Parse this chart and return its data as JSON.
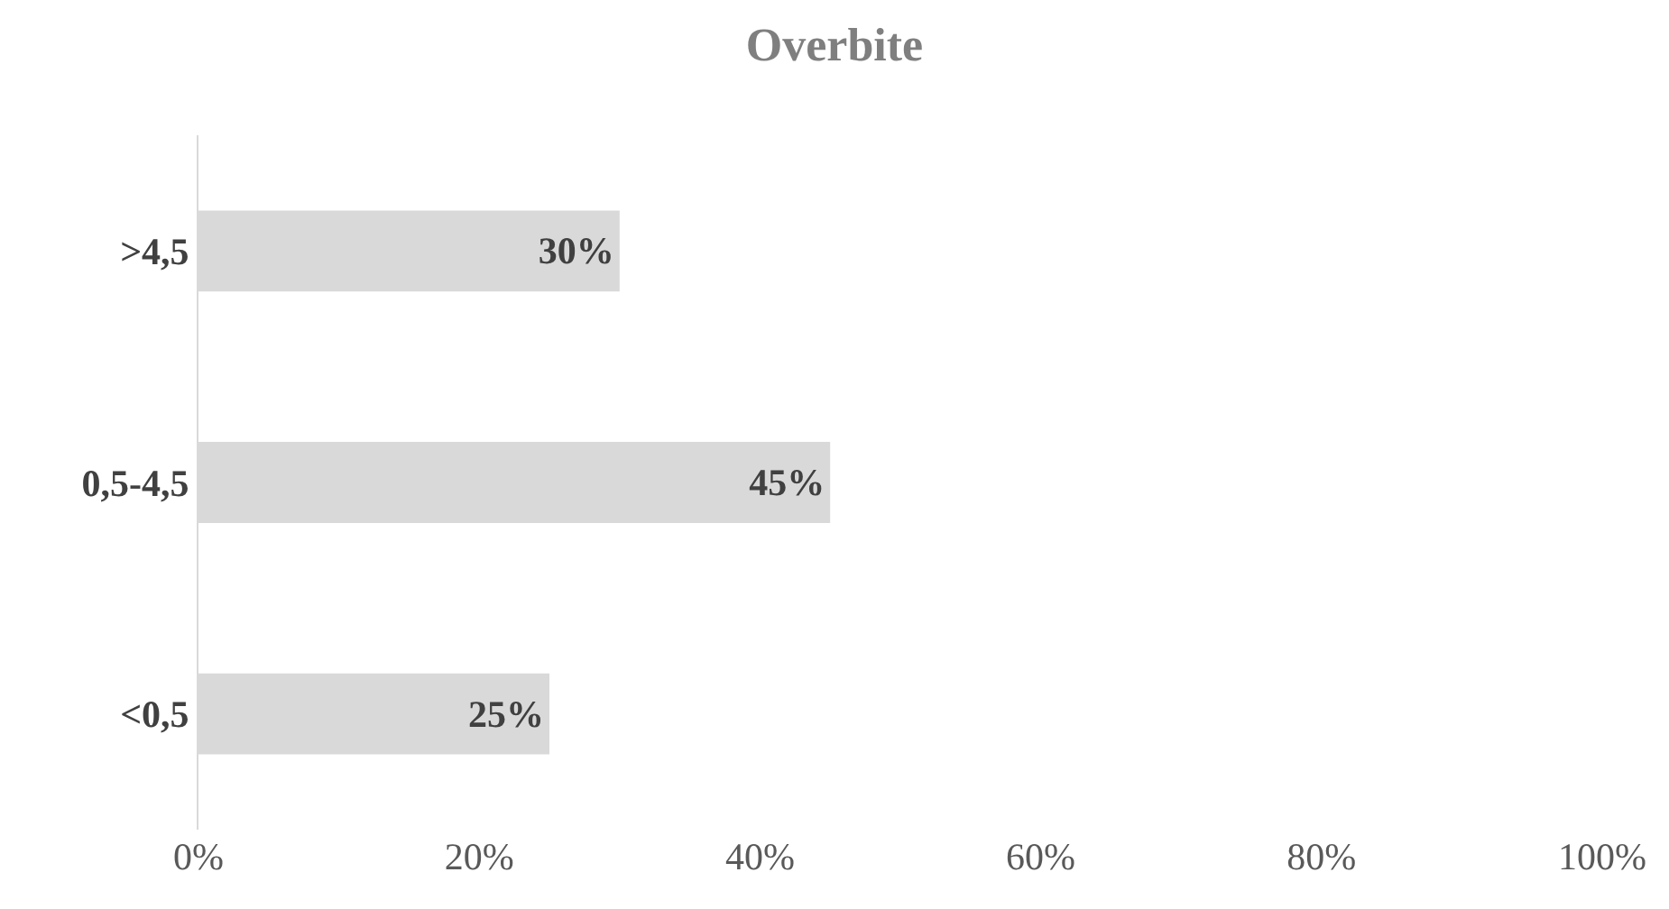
{
  "chart_data": {
    "type": "bar",
    "orientation": "horizontal",
    "title": "Overbite",
    "categories": [
      ">4,5",
      "0,5-4,5",
      "<0,5"
    ],
    "values": [
      30,
      45,
      25
    ],
    "value_labels": [
      "30%",
      "45%",
      "25%"
    ],
    "color": "#d9d9d9",
    "xlim": [
      0,
      100
    ],
    "xticks": [
      {
        "value": 0,
        "label": "0%"
      },
      {
        "value": 20,
        "label": "20%"
      },
      {
        "value": 40,
        "label": "40%"
      },
      {
        "value": 60,
        "label": "60%"
      },
      {
        "value": 80,
        "label": "80%"
      },
      {
        "value": 100,
        "label": "100%"
      }
    ],
    "grid": false
  }
}
